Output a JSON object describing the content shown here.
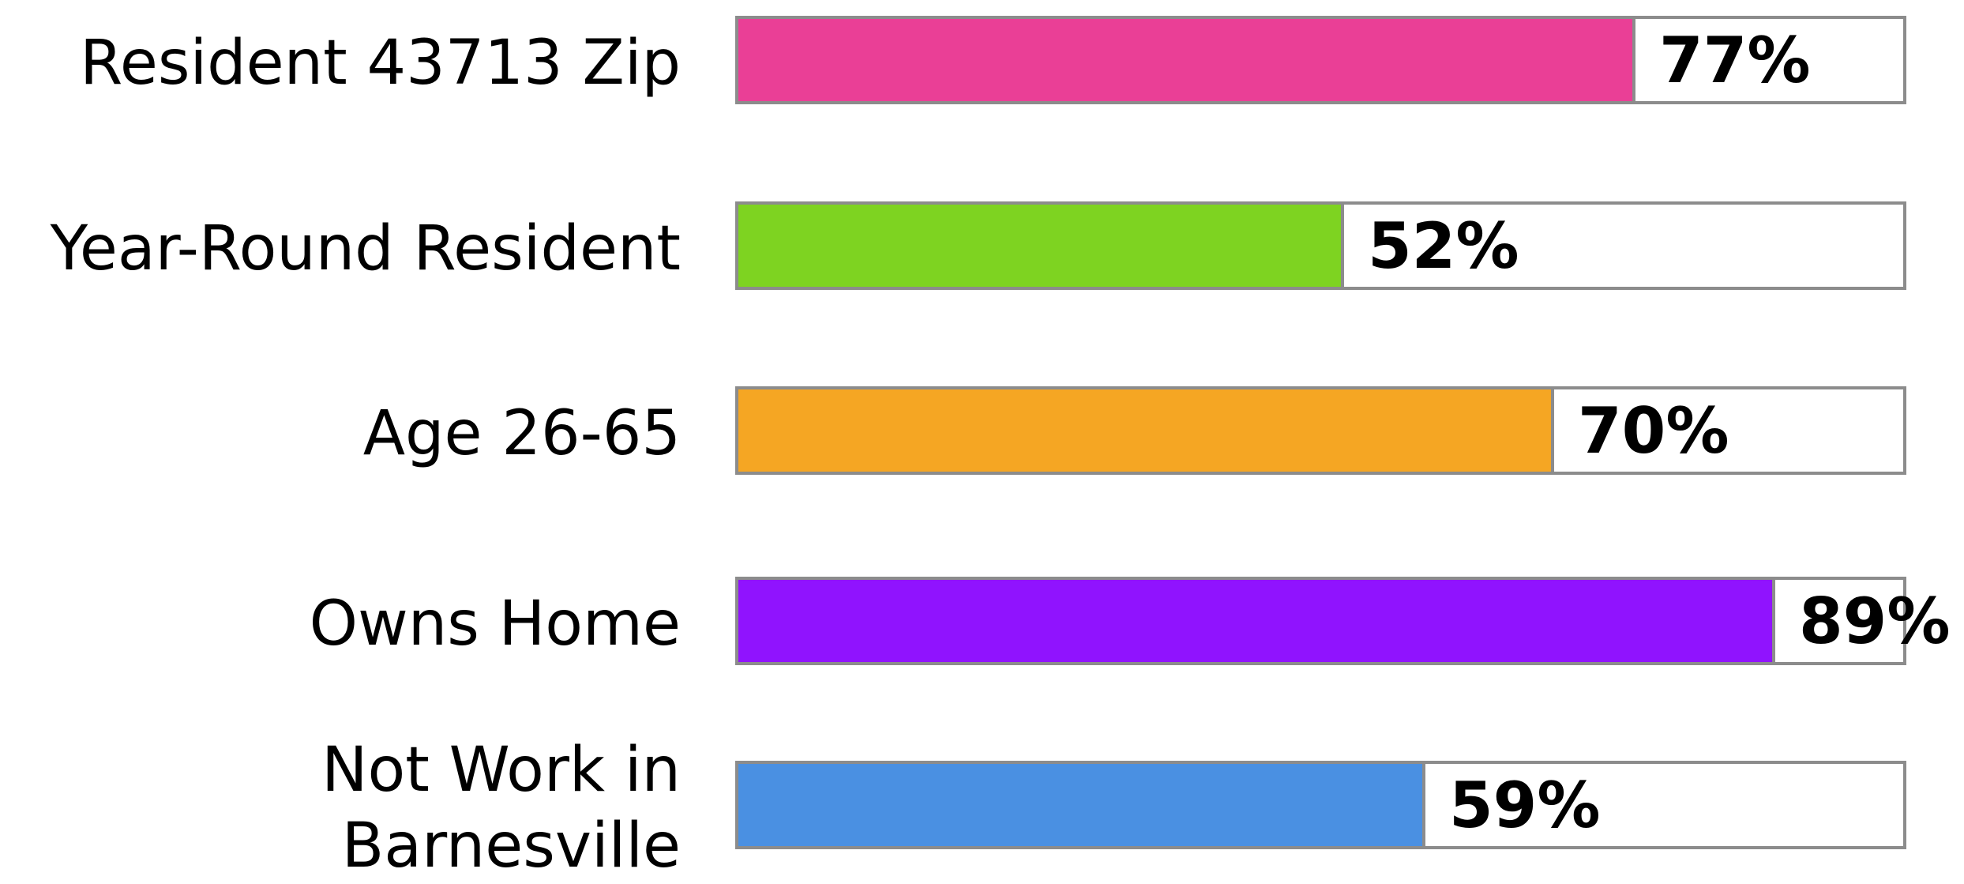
{
  "chart_data": {
    "type": "bar",
    "orientation": "horizontal",
    "categories": [
      "Resident 43713 Zip",
      "Year-Round Resident",
      "Age 26-65",
      "Owns Home",
      "Not Work in Barnesville"
    ],
    "values": [
      77,
      52,
      70,
      89,
      59
    ],
    "value_labels": [
      "77%",
      "52%",
      "70%",
      "89%",
      "59%"
    ],
    "colors": [
      "#ea3f96",
      "#7ed321",
      "#f5a623",
      "#9013fe",
      "#4a90e2"
    ],
    "xlim": [
      0,
      100
    ],
    "title": "",
    "xlabel": "",
    "ylabel": "",
    "grid": false,
    "legend": "none"
  }
}
